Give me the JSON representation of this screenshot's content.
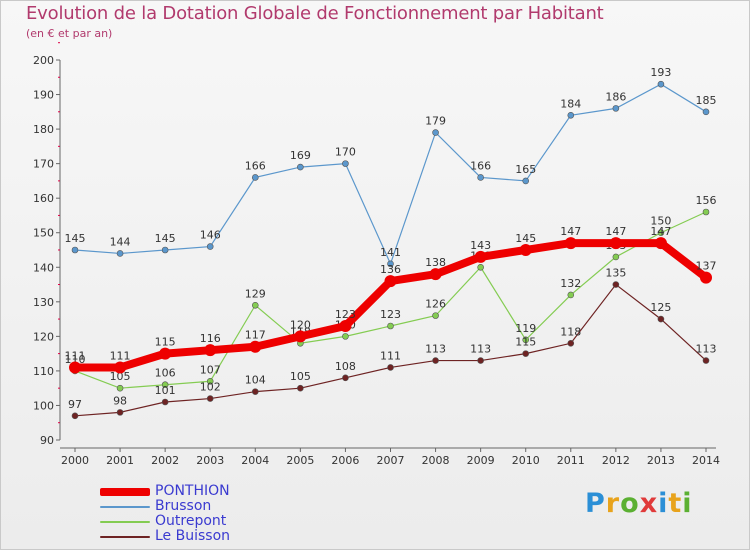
{
  "header": {
    "title": "Evolution de la Dotation Globale de Fonctionnement par Habitant",
    "subtitle": "(en € et par an)"
  },
  "brand": {
    "letters": [
      "P",
      "r",
      "o",
      "x",
      "i",
      "t",
      "i"
    ],
    "colors": [
      "#2b8fd6",
      "#e8a31c",
      "#5bb032",
      "#e03a3a",
      "#2b8fd6",
      "#e8a31c",
      "#5bb032"
    ]
  },
  "chart_data": {
    "type": "line",
    "title": "Evolution de la Dotation Globale de Fonctionnement par Habitant",
    "subtitle": "(en € et par an)",
    "xlabel": "",
    "ylabel": "",
    "x": [
      2000,
      2001,
      2002,
      2003,
      2004,
      2005,
      2006,
      2007,
      2008,
      2009,
      2010,
      2011,
      2012,
      2013,
      2014
    ],
    "ylim": [
      90,
      200
    ],
    "yticks": [
      90,
      100,
      110,
      120,
      130,
      140,
      150,
      160,
      170,
      180,
      190,
      200
    ],
    "grid": false,
    "legend_position": "bottom-left",
    "series": [
      {
        "name": "Brusson",
        "color": "#5b97cc",
        "emphasis": false,
        "values": [
          145,
          144,
          145,
          146,
          166,
          169,
          170,
          141,
          179,
          166,
          165,
          184,
          186,
          193,
          185
        ]
      },
      {
        "name": "Outrepont",
        "color": "#84cc52",
        "emphasis": false,
        "values": [
          110,
          105,
          106,
          107,
          129,
          118,
          120,
          123,
          126,
          140,
          119,
          132,
          143,
          150,
          156
        ]
      },
      {
        "name": "Le Buisson",
        "color": "#6e2323",
        "emphasis": false,
        "values": [
          97,
          98,
          101,
          102,
          104,
          105,
          108,
          111,
          113,
          113,
          115,
          118,
          135,
          125,
          113
        ]
      },
      {
        "name": "PONTHION",
        "color": "#ee0000",
        "emphasis": true,
        "values": [
          111,
          111,
          115,
          116,
          117,
          120,
          123,
          136,
          138,
          143,
          145,
          147,
          147,
          147,
          137
        ]
      }
    ],
    "legend_order": [
      "PONTHION",
      "Brusson",
      "Outrepont",
      "Le Buisson"
    ]
  }
}
